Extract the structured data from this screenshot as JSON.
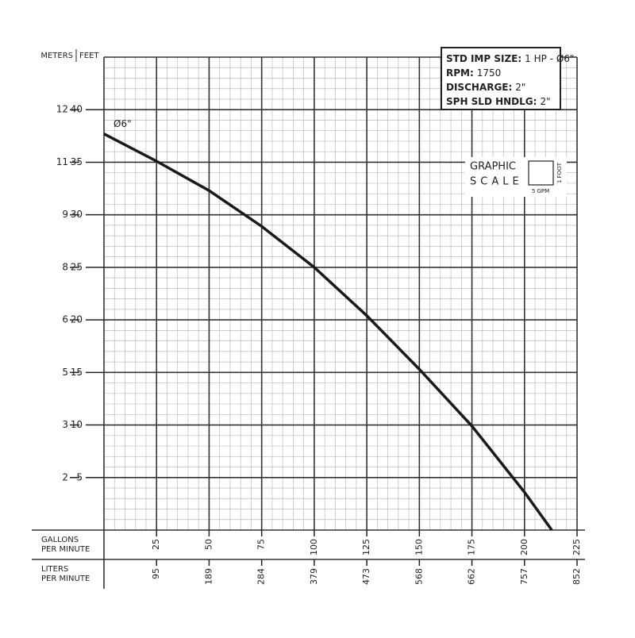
{
  "chart_data": {
    "type": "line",
    "y_label_left": "METERS",
    "y_label": "FEET",
    "x_label": "GALLONS PER MINUTE",
    "x2_label": "LITERS PER MINUTE",
    "xlim": [
      0,
      225
    ],
    "ylim": [
      0,
      45
    ],
    "xticks": [
      25,
      50,
      75,
      100,
      125,
      150,
      175,
      200,
      225
    ],
    "x2ticks": [
      {
        "value": 25,
        "label": "95"
      },
      {
        "value": 50,
        "label": "189"
      },
      {
        "value": 75,
        "label": "284"
      },
      {
        "value": 100,
        "label": "379"
      },
      {
        "value": 125,
        "label": "473"
      },
      {
        "value": 150,
        "label": "568"
      },
      {
        "value": 175,
        "label": "662"
      },
      {
        "value": 200,
        "label": "757"
      },
      {
        "value": 225,
        "label": "852"
      }
    ],
    "yticks": [
      5,
      10,
      15,
      20,
      25,
      30,
      35,
      40
    ],
    "y_left_ticks": [
      {
        "value": 5,
        "label": "2"
      },
      {
        "value": 10,
        "label": "3"
      },
      {
        "value": 15,
        "label": "5"
      },
      {
        "value": 20,
        "label": "6"
      },
      {
        "value": 25,
        "label": "8"
      },
      {
        "value": 30,
        "label": "9"
      },
      {
        "value": 35,
        "label": "11"
      },
      {
        "value": 40,
        "label": "12"
      }
    ],
    "grid": true,
    "series": [
      {
        "name": "Ø6\"",
        "color": "#1a1a1a",
        "x": [
          0,
          25,
          50,
          75,
          100,
          125,
          150,
          175,
          200,
          213
        ],
        "values": [
          37.7,
          35.1,
          32.3,
          28.9,
          25.0,
          20.4,
          15.3,
          9.9,
          3.6,
          0
        ]
      }
    ],
    "info_box": [
      {
        "key": "STD IMP SIZE:",
        "value": "1 HP - Ø6\""
      },
      {
        "key": "RPM:",
        "value": "1750"
      },
      {
        "key": "DISCHARGE:",
        "value": "2\""
      },
      {
        "key": "SPH SLD HNDLG:",
        "value": "2\""
      }
    ],
    "graphic_scale": {
      "title": "GRAPHIC",
      "subtitle": "SCALE",
      "y_unit": "1 FOOT",
      "x_unit": "5 GPM"
    }
  }
}
